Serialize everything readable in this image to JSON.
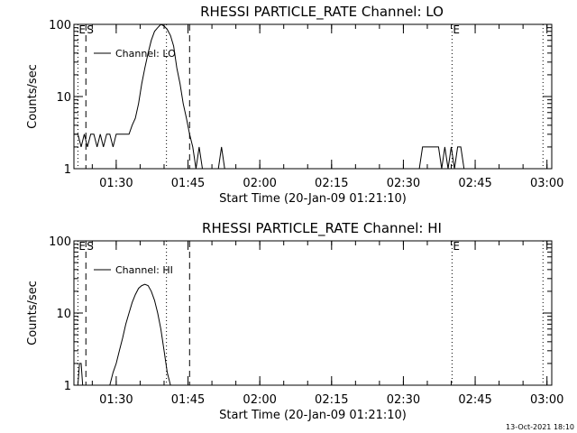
{
  "chart_data": [
    {
      "type": "line",
      "title": "RHESSI PARTICLE_RATE Channel: LO",
      "xlabel": "Start Time (20-Jan-09 01:21:10)",
      "ylabel": "Counts/sec",
      "y_scale": "log",
      "ylim": [
        1,
        100
      ],
      "xlim": [
        "01:21:10",
        "03:01:00"
      ],
      "x_tick_labels": [
        "01:30",
        "01:45",
        "02:00",
        "02:15",
        "02:30",
        "02:45",
        "03:00"
      ],
      "y_tick_labels": [
        "1",
        "10",
        "100"
      ],
      "legend": {
        "position": "top-left",
        "entries": [
          "Channel: LO"
        ]
      },
      "markers": [
        {
          "label": "E",
          "time": "01:22:00",
          "style": "dotted"
        },
        {
          "label": "S",
          "time": "01:23:40",
          "style": "dashed"
        },
        {
          "label": "",
          "time": "01:40:30",
          "style": "dotted"
        },
        {
          "label": "",
          "time": "01:45:20",
          "style": "dashed"
        },
        {
          "label": "E",
          "time": "02:40:10",
          "style": "dotted"
        },
        {
          "label": "",
          "time": "02:59:10",
          "style": "dotted"
        }
      ],
      "series": [
        {
          "name": "Channel: LO",
          "x": [
            "01:21:10",
            "01:22:00",
            "01:22:40",
            "01:23:20",
            "01:24:00",
            "01:24:40",
            "01:25:20",
            "01:26:00",
            "01:26:40",
            "01:27:20",
            "01:28:00",
            "01:28:40",
            "01:29:20",
            "01:30:00",
            "01:30:40",
            "01:31:20",
            "01:32:00",
            "01:32:40",
            "01:33:20",
            "01:34:00",
            "01:34:40",
            "01:35:20",
            "01:36:00",
            "01:36:40",
            "01:37:20",
            "01:38:00",
            "01:38:40",
            "01:39:20",
            "01:40:00",
            "01:40:40",
            "01:41:20",
            "01:42:00",
            "01:42:40",
            "01:43:20",
            "01:44:00",
            "01:44:40",
            "01:45:20",
            "01:46:00",
            "01:46:40",
            "01:47:20",
            "01:48:00",
            "01:48:40",
            "01:49:20",
            "01:50:00",
            "01:50:40",
            "01:51:20",
            "01:52:00",
            "01:52:40",
            "02:33:20",
            "02:34:00",
            "02:36:40",
            "02:37:20",
            "02:38:00",
            "02:38:40",
            "02:39:20",
            "02:40:00",
            "02:40:40",
            "02:41:20",
            "02:42:00",
            "02:42:40",
            "02:43:20",
            "02:44:00"
          ],
          "y": [
            3,
            3,
            2,
            3,
            2,
            3,
            3,
            2,
            3,
            2,
            3,
            3,
            2,
            3,
            3,
            3,
            3,
            3,
            4,
            5,
            8,
            15,
            25,
            40,
            60,
            80,
            90,
            100,
            95,
            85,
            70,
            50,
            25,
            15,
            8,
            5,
            3,
            2,
            1,
            2,
            1,
            1,
            1,
            1,
            1,
            1,
            2,
            1,
            1,
            2,
            2,
            2,
            1,
            2,
            1,
            2,
            1,
            2,
            2,
            1,
            1,
            1
          ]
        }
      ]
    },
    {
      "type": "line",
      "title": "RHESSI PARTICLE_RATE Channel: HI",
      "xlabel": "Start Time (20-Jan-09 01:21:10)",
      "ylabel": "Counts/sec",
      "y_scale": "log",
      "ylim": [
        1,
        100
      ],
      "xlim": [
        "01:21:10",
        "03:01:00"
      ],
      "x_tick_labels": [
        "01:30",
        "01:45",
        "02:00",
        "02:15",
        "02:30",
        "02:45",
        "03:00"
      ],
      "y_tick_labels": [
        "1",
        "10",
        "100"
      ],
      "legend": {
        "position": "top-left",
        "entries": [
          "Channel: HI"
        ]
      },
      "markers": [
        {
          "label": "E",
          "time": "01:22:00",
          "style": "dotted"
        },
        {
          "label": "S",
          "time": "01:23:40",
          "style": "dashed"
        },
        {
          "label": "",
          "time": "01:40:30",
          "style": "dotted"
        },
        {
          "label": "",
          "time": "01:45:20",
          "style": "dashed"
        },
        {
          "label": "E",
          "time": "02:40:10",
          "style": "dotted"
        },
        {
          "label": "",
          "time": "02:59:10",
          "style": "dotted"
        }
      ],
      "series": [
        {
          "name": "Channel: HI",
          "x": [
            "01:22:00",
            "01:22:20",
            "01:22:40",
            "01:23:00",
            "01:28:40",
            "01:29:20",
            "01:30:00",
            "01:30:40",
            "01:31:20",
            "01:32:00",
            "01:32:40",
            "01:33:20",
            "01:34:00",
            "01:34:40",
            "01:35:20",
            "01:36:00",
            "01:36:40",
            "01:37:20",
            "01:38:00",
            "01:38:40",
            "01:39:20",
            "01:40:00",
            "01:40:40",
            "01:41:20"
          ],
          "y": [
            1,
            2,
            2,
            1,
            1,
            1.5,
            2,
            3,
            4.5,
            7,
            10,
            14,
            18,
            22,
            24,
            25,
            24,
            20,
            15,
            10,
            6,
            3,
            1.5,
            1
          ]
        }
      ]
    }
  ],
  "footer": {
    "timestamp": "13-Oct-2021 18:10"
  }
}
